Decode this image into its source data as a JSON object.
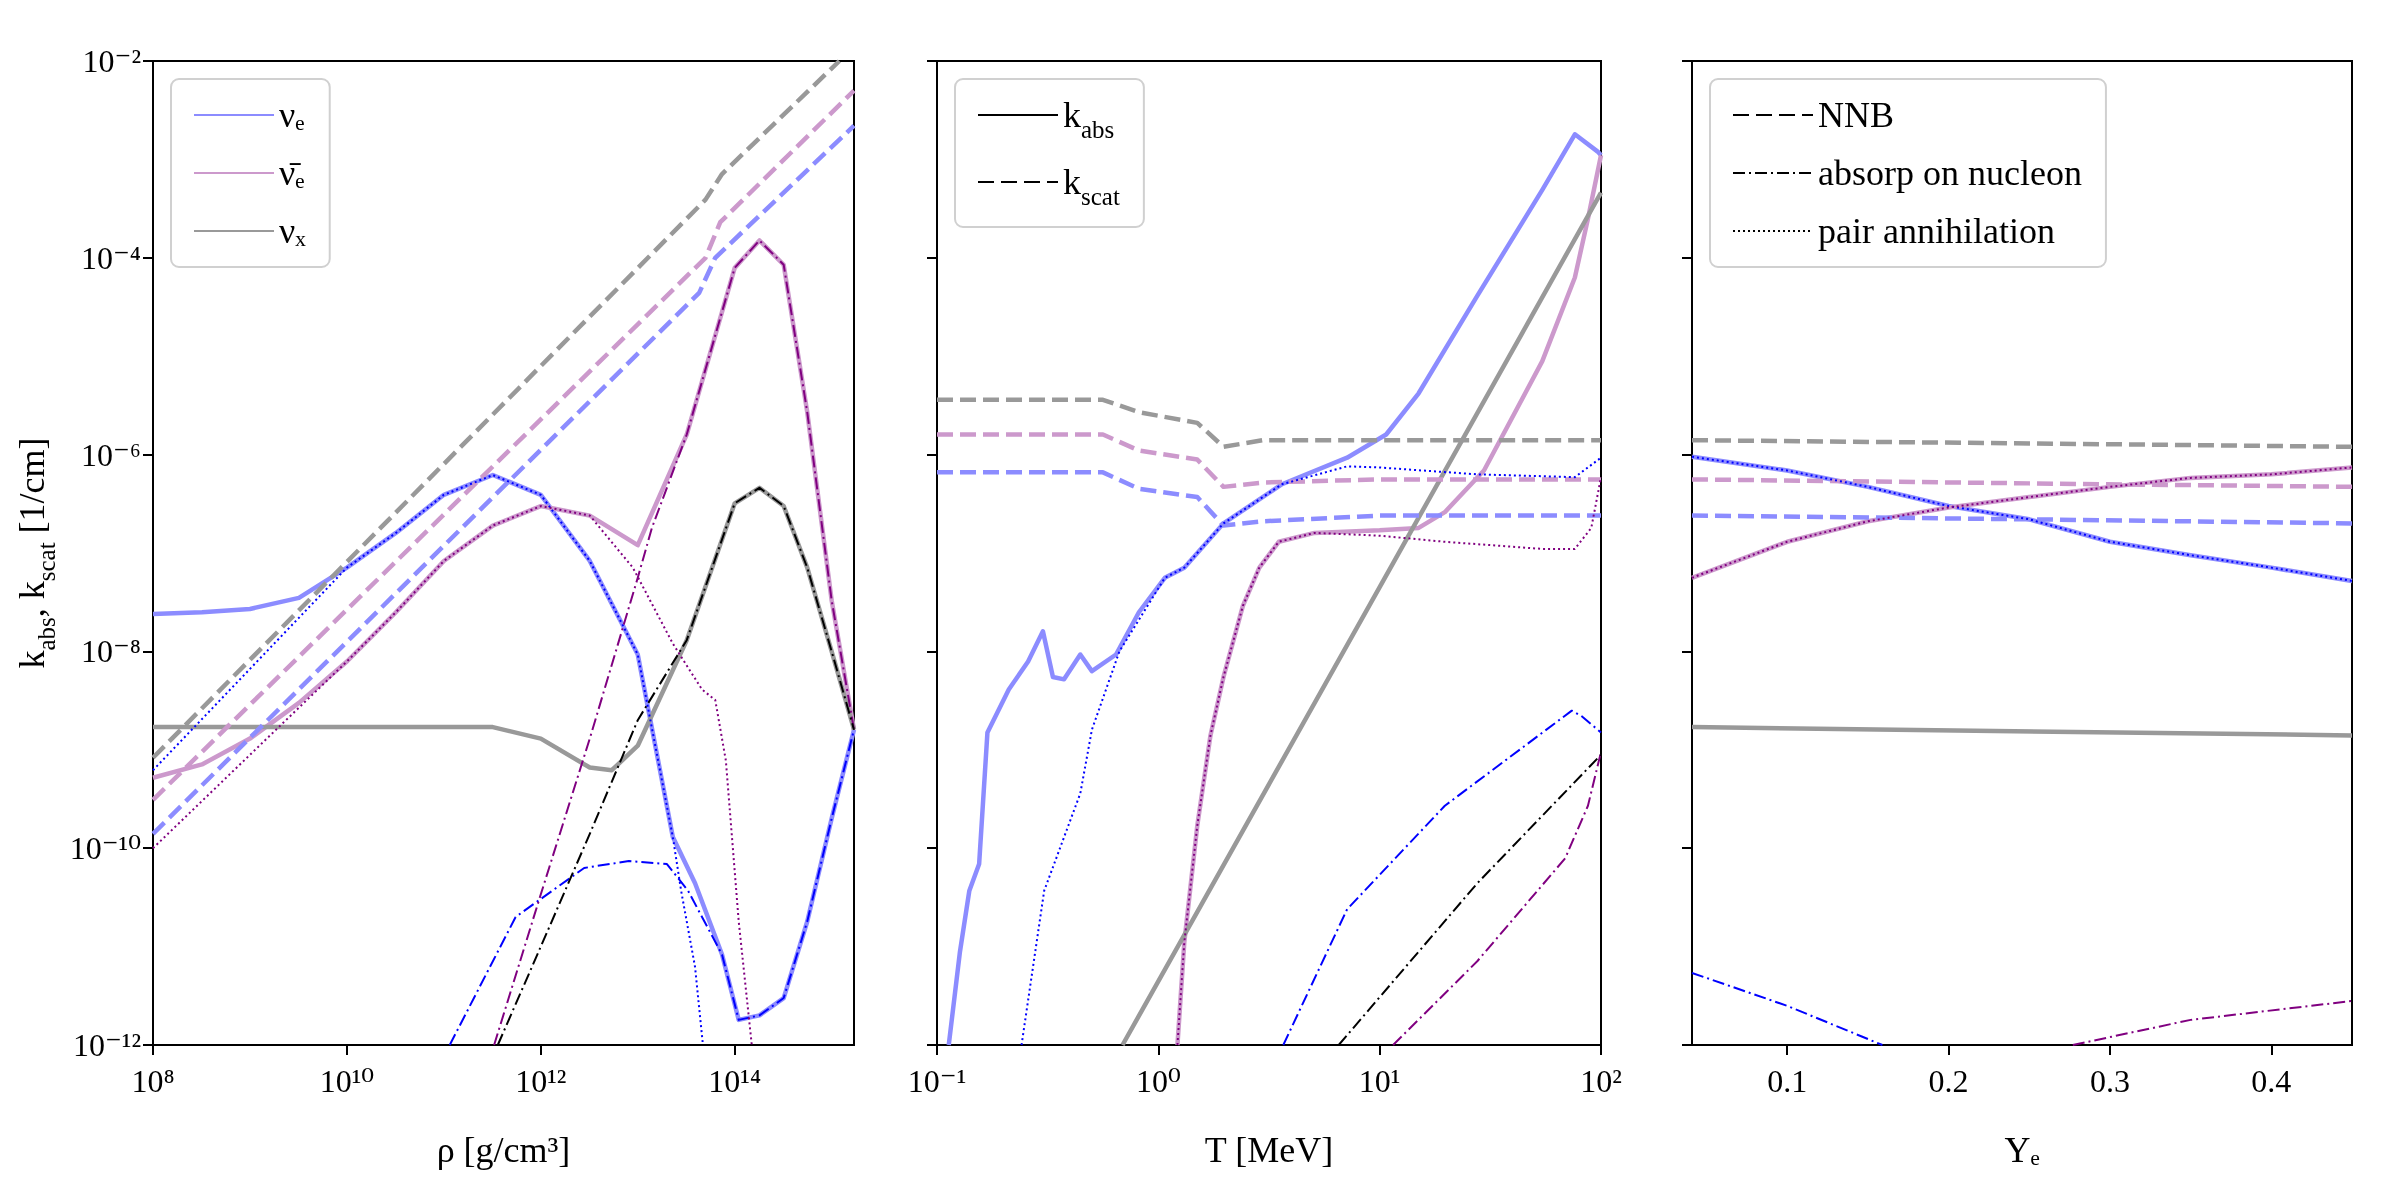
{
  "chart_data": [
    {
      "type": "line",
      "xlabel": "ρ [g/cm³]",
      "ylabel": "k$_{abs}$, k$_{scat}$ [1/cm]",
      "log": "xy",
      "grid": false,
      "legend": "top left",
      "marker": "none",
      "xlim": [
        100000000.0,
        1700000000000000.0
      ],
      "xticks": [
        {
          "value": 100000000.0,
          "label": "10⁸"
        },
        {
          "value": 10000000000.0,
          "label": "10¹⁰"
        },
        {
          "value": 1000000000000.0,
          "label": "10¹²"
        },
        {
          "value": 100000000000000.0,
          "label": "10¹⁴"
        }
      ],
      "ylim": [
        1e-12,
        0.01
      ],
      "yticks": [
        {
          "value": 1e-12,
          "label": "10⁻¹²"
        },
        {
          "value": 1e-10,
          "label": "10⁻¹⁰"
        },
        {
          "value": 1e-08,
          "label": "10⁻⁸"
        },
        {
          "value": 1e-06,
          "label": "10⁻⁶"
        },
        {
          "value": 0.0001,
          "label": "10⁻⁴"
        },
        {
          "value": 0.01,
          "label": "10⁻²"
        }
      ],
      "series": [
        {
          "name": "νₑ",
          "color": "#8c8cff",
          "line_style": "solid",
          "x": [
            100000000.0,
            320000000.0,
            1000000000.0,
            3200000000.0,
            10000000000.0,
            32000000000.0,
            100000000000.0,
            320000000000.0,
            1000000000000.0,
            3200000000000.0,
            10000000000000.0,
            23000000000000.0,
            39000000000000.0,
            74000000000000.0,
            110000000000000.0,
            180000000000000.0,
            320000000000000.0,
            560000000000000.0,
            1000000000000000.0,
            1700000000000000.0
          ],
          "values": [
            2.4e-08,
            2.5e-08,
            2.7e-08,
            3.5e-08,
            7.1e-08,
            1.6e-07,
            3.9e-07,
            6.2e-07,
            3.9e-07,
            8.3e-08,
            9.3e-09,
            1.3e-10,
            4.4e-11,
            8.3e-12,
            1.8e-12,
            2e-12,
            3e-12,
            1.8e-11,
            2e-10,
            1.6e-09
          ]
        },
        {
          "name": "ν̄ₑ",
          "color": "#cc99cc",
          "line_style": "solid",
          "x": [
            100000000.0,
            320000000.0,
            1000000000.0,
            3200000000.0,
            10000000000.0,
            32000000000.0,
            100000000000.0,
            320000000000.0,
            1000000000000.0,
            3200000000000.0,
            10000000000000.0,
            32000000000000.0,
            100000000000000.0,
            180000000000000.0,
            320000000000000.0,
            560000000000000.0,
            1000000000000000.0,
            1700000000000000.0
          ],
          "values": [
            5.2e-10,
            7.1e-10,
            1.3e-09,
            3e-09,
            7.9e-09,
            2.5e-08,
            8.3e-08,
            1.9e-07,
            3e-07,
            2.4e-07,
            1.2e-07,
            1.6e-06,
            7.9e-05,
            0.00015,
            8.5e-05,
            2.7e-06,
            3.3e-08,
            1.6e-09
          ]
        },
        {
          "name": "νₓ",
          "color": "#999999",
          "line_style": "solid",
          "x": [
            100000000.0,
            10000000000.0,
            320000000000.0,
            1000000000000.0,
            3200000000000.0,
            5400000000000.0,
            10000000000000.0,
            32000000000000.0,
            100000000000000.0,
            180000000000000.0,
            320000000000000.0,
            560000000000000.0,
            1000000000000000.0,
            1700000000000000.0
          ],
          "values": [
            1.7e-09,
            1.7e-09,
            1.7e-09,
            1.3e-09,
            6.6e-10,
            6.2e-10,
            1.1e-09,
            1.3e-08,
            3.2e-07,
            4.6e-07,
            3e-07,
            7.1e-08,
            1e-08,
            1.6e-09
          ]
        },
        {
          "color": "#999999",
          "line_style": "dashed",
          "x": [
            100000000.0,
            50000000000000.0,
            74000000000000.0,
            1200000000000000.0
          ],
          "values": [
            8.3e-10,
            0.00039,
            0.00071,
            0.01
          ]
        },
        {
          "color": "#cc99cc",
          "line_style": "dashed",
          "x": [
            100000000.0,
            50000000000000.0,
            71000000000000.0,
            1700000000000000.0
          ],
          "values": [
            3.1e-10,
            0.0001,
            0.00023,
            0.005
          ]
        },
        {
          "color": "#8c8cff",
          "line_style": "dashed",
          "x": [
            100000000.0,
            43000000000000.0,
            63000000000000.0,
            1700000000000000.0
          ],
          "values": [
            1.4e-10,
            4.4e-05,
            0.0001,
            0.0022
          ]
        },
        {
          "color": "#0000ff",
          "line_style": "dotted",
          "x": [
            100000000.0,
            10000000000.0,
            32000000000.0,
            100000000000.0,
            320000000000.0,
            1000000000000.0,
            3200000000000.0,
            10000000000000.0,
            23000000000000.0,
            28000000000000.0,
            39000000000000.0,
            47000000000000.0
          ],
          "values": [
            6.2e-10,
            7.1e-08,
            1.6e-07,
            3.9e-07,
            6.2e-07,
            3.9e-07,
            8.3e-08,
            9.3e-09,
            1.3e-10,
            3.7e-11,
            6.2e-12,
            1e-12
          ]
        },
        {
          "color": "#0000ff",
          "line_style": "dashdot",
          "x": [
            115000000000.0,
            550000000000.0,
            2800000000000.0,
            8100000000000.0,
            20000000000000.0,
            33000000000000.0,
            74000000000000.0,
            110000000000000.0,
            180000000000000.0,
            320000000000000.0,
            560000000000000.0,
            1000000000000000.0,
            1700000000000000.0
          ],
          "values": [
            1e-12,
            2e-11,
            6.3e-11,
            7.4e-11,
            6.9e-11,
            3.7e-11,
            8.3e-12,
            1.8e-12,
            2e-12,
            3e-12,
            1.8e-11,
            2e-10,
            1.6e-09
          ]
        },
        {
          "color": "#800080",
          "line_style": "dotted",
          "x": [
            100000000.0,
            10000000000.0,
            32000000000.0,
            100000000000.0,
            320000000000.0,
            1000000000000.0,
            3200000000000.0,
            8900000000000.0,
            23000000000000.0,
            46000000000000.0,
            63000000000000.0,
            81000000000000.0,
            110000000000000.0,
            150000000000000.0
          ],
          "values": [
            1e-10,
            7.9e-09,
            2.5e-08,
            8.3e-08,
            1.9e-07,
            3e-07,
            2.4e-07,
            7.1e-08,
            1.2e-08,
            4.1e-09,
            3.2e-09,
            7.8e-10,
            1.8e-11,
            1e-12
          ]
        },
        {
          "color": "#800080",
          "line_style": "dashdot",
          "x": [
            330000000000.0,
            1000000000000.0,
            3200000000000.0,
            10000000000000.0,
            14000000000000.0,
            32000000000000.0,
            100000000000000.0,
            180000000000000.0,
            320000000000000.0,
            560000000000000.0,
            1000000000000000.0,
            1700000000000000.0
          ],
          "values": [
            1e-12,
            3.4e-11,
            1.3e-09,
            5.6e-08,
            1.8e-07,
            1.6e-06,
            7.9e-05,
            0.00015,
            8.5e-05,
            2.7e-06,
            3.3e-08,
            1.6e-09
          ]
        },
        {
          "color": "#000000",
          "line_style": "dashdot",
          "x": [
            360000000000.0,
            1000000000000.0,
            3200000000000.0,
            10000000000000.0,
            32000000000000.0,
            100000000000000.0,
            180000000000000.0,
            320000000000000.0,
            560000000000000.0,
            1000000000000000.0,
            1700000000000000.0
          ],
          "values": [
            1e-12,
            1e-11,
            1.4e-10,
            2e-09,
            1.3e-08,
            3.2e-07,
            4.6e-07,
            3e-07,
            7.1e-08,
            1e-08,
            1.6e-09
          ]
        }
      ]
    },
    {
      "type": "line",
      "xlabel": "T [MeV]",
      "log": "xy",
      "grid": false,
      "legend": "top left",
      "marker": "none",
      "tick_labels": "x",
      "xlim": [
        0.1,
        100
      ],
      "xticks": [
        {
          "value": 0.1,
          "label": "10⁻¹"
        },
        {
          "value": 1,
          "label": "10⁰"
        },
        {
          "value": 10,
          "label": "10¹"
        },
        {
          "value": 100,
          "label": "10²"
        }
      ],
      "ylim": [
        1e-12,
        0.01
      ],
      "yticks": [
        1e-12,
        1e-10,
        1e-08,
        1e-06,
        0.0001,
        0.01
      ],
      "series": [
        {
          "color": "#8c8cff",
          "line_style": "solid",
          "x": [
            0.113,
            0.127,
            0.14,
            0.155,
            0.169,
            0.211,
            0.258,
            0.301,
            0.334,
            0.375,
            0.444,
            0.501,
            0.644,
            0.817,
            1.07,
            1.31,
            1.97,
            3.62,
            7.13,
            10.7,
            15,
            27.6,
            54.3,
            76.2,
            96.6,
            100
          ],
          "values": [
            1e-12,
            8.9e-12,
            3.7e-11,
            6.9e-11,
            1.5e-09,
            4.1e-09,
            7.9e-09,
            1.6e-08,
            5.5e-09,
            5.2e-09,
            9.3e-09,
            6.3e-09,
            9.3e-09,
            2.5e-08,
            5.6e-08,
            7.1e-08,
            2e-07,
            5e-07,
            9.3e-07,
            1.6e-06,
            4.2e-06,
            4.1e-05,
            0.00049,
            0.0018,
            0.0012,
            0.0011
          ]
        },
        {
          "color": "#cc99cc",
          "line_style": "solid",
          "x": [
            1.22,
            1.31,
            1.5,
            1.72,
            1.97,
            2.41,
            2.86,
            3.5,
            5.08,
            10,
            15,
            19.7,
            29.6,
            54.3,
            76.2,
            87.3,
            100
          ],
          "values": [
            1e-12,
            1.1e-11,
            1.7e-10,
            1.4e-09,
            5.5e-09,
            2.9e-08,
            7.1e-08,
            1.3e-07,
            1.6e-07,
            1.7e-07,
            1.8e-07,
            2.6e-07,
            6.9e-07,
            8.9e-06,
            6.3e-05,
            0.00025,
            0.0011
          ]
        },
        {
          "color": "#999999",
          "line_style": "solid",
          "x": [
            0.689,
            10,
            100
          ],
          "values": [
            1e-12,
            4.5e-08,
            0.00046
          ]
        },
        {
          "color": "#999999",
          "line_style": "dashed",
          "x": [
            0.1,
            0.562,
            0.817,
            1.5,
            1.97,
            2.96,
            10,
            100
          ],
          "values": [
            3.6e-06,
            3.6e-06,
            2.7e-06,
            2.1e-06,
            1.2e-06,
            1.4e-06,
            1.4e-06,
            1.4e-06
          ]
        },
        {
          "color": "#cc99cc",
          "line_style": "dashed",
          "x": [
            0.1,
            0.562,
            0.817,
            1.5,
            1.97,
            2.96,
            10,
            100
          ],
          "values": [
            1.6e-06,
            1.6e-06,
            1.1e-06,
            8.9e-07,
            4.7e-07,
            5.2e-07,
            5.6e-07,
            5.6e-07
          ]
        },
        {
          "color": "#8c8cff",
          "line_style": "dashed",
          "x": [
            0.1,
            0.562,
            0.817,
            1.5,
            1.97,
            2.96,
            10,
            100
          ],
          "values": [
            6.6e-07,
            6.6e-07,
            4.5e-07,
            3.7e-07,
            1.9e-07,
            2.1e-07,
            2.4e-07,
            2.4e-07
          ]
        },
        {
          "color": "#0000ff",
          "line_style": "dotted",
          "x": [
            0.241,
            0.305,
            0.444,
            0.501,
            0.667,
            1.07,
            1.31,
            1.97,
            3.62,
            7.13,
            10,
            27.6,
            76.2,
            100
          ],
          "values": [
            1e-12,
            3.7e-11,
            3.6e-10,
            1.6e-09,
            1e-08,
            5.6e-08,
            7.1e-08,
            2e-07,
            5e-07,
            7.6e-07,
            7.4e-07,
            6.3e-07,
            5.9e-07,
            9.3e-07
          ]
        },
        {
          "color": "#0000ff",
          "line_style": "dashdot",
          "x": [
            3.67,
            7.13,
            19.7,
            73.8,
            81.6,
            100
          ],
          "values": [
            1e-12,
            2.4e-11,
            2.7e-10,
            2.5e-09,
            2.2e-09,
            1.5e-09
          ]
        },
        {
          "color": "#800080",
          "line_style": "dotted",
          "x": [
            1.22,
            1.31,
            1.5,
            1.72,
            1.97,
            2.41,
            2.86,
            3.5,
            5.08,
            10,
            19.7,
            54.3,
            76.2,
            90.4,
            100
          ],
          "values": [
            1e-12,
            1.1e-11,
            1.7e-10,
            1.4e-09,
            5.5e-09,
            2.9e-08,
            7.1e-08,
            1.3e-07,
            1.6e-07,
            1.5e-07,
            1.3e-07,
            1.1e-07,
            1.1e-07,
            1.8e-07,
            5.9e-07
          ]
        },
        {
          "color": "#800080",
          "line_style": "dashdot",
          "x": [
            11.5,
            27.6,
            68.9,
            87.3,
            100
          ],
          "values": [
            1e-12,
            7.1e-12,
            7.9e-11,
            2.7e-10,
            9.5e-10
          ]
        },
        {
          "color": "#000000",
          "line_style": "dashdot",
          "x": [
            6.53,
            27.6,
            100
          ],
          "values": [
            1e-12,
            4.4e-11,
            8.9e-10
          ]
        },
        {
          "name": "k$_{abs}$",
          "color": "#000000",
          "line_style": "solid"
        },
        {
          "name": "k$_{scat}$",
          "color": "#000000",
          "line_style": "dashed"
        }
      ]
    },
    {
      "type": "line",
      "xlabel": "Yₑ",
      "log": "y",
      "grid": false,
      "legend": "top left",
      "marker": "none",
      "tick_labels": "x",
      "xlim": [
        0.041,
        0.45
      ],
      "xticks": [
        0.1,
        0.2,
        0.3,
        0.4
      ],
      "ylim": [
        1e-12,
        0.01
      ],
      "yticks": [
        1e-12,
        1e-10,
        1e-08,
        1e-06,
        0.0001,
        0.01
      ],
      "series": [
        {
          "color": "#8c8cff",
          "line_style": "solid",
          "x": [
            0.041,
            0.1,
            0.15,
            0.2,
            0.25,
            0.3,
            0.35,
            0.4,
            0.45
          ],
          "values": [
            9.5e-07,
            6.9e-07,
            4.7e-07,
            3e-07,
            2.2e-07,
            1.3e-07,
            9.5e-08,
            7.1e-08,
            5.2e-08
          ]
        },
        {
          "color": "#cc99cc",
          "line_style": "solid",
          "x": [
            0.041,
            0.1,
            0.15,
            0.2,
            0.25,
            0.3,
            0.35,
            0.4,
            0.45
          ],
          "values": [
            5.6e-08,
            1.3e-07,
            2.1e-07,
            2.9e-07,
            3.7e-07,
            4.7e-07,
            5.8e-07,
            6.3e-07,
            7.4e-07
          ]
        },
        {
          "color": "#999999",
          "line_style": "solid",
          "x": [
            0.041,
            0.45
          ],
          "values": [
            1.7e-09,
            1.4e-09
          ]
        },
        {
          "color": "#999999",
          "line_style": "dashed",
          "x": [
            0.041,
            0.25,
            0.45
          ],
          "values": [
            1.4e-06,
            1.3e-06,
            1.2e-06
          ]
        },
        {
          "color": "#cc99cc",
          "line_style": "dashed",
          "x": [
            0.041,
            0.25,
            0.45
          ],
          "values": [
            5.6e-07,
            5.1e-07,
            4.7e-07
          ]
        },
        {
          "color": "#8c8cff",
          "line_style": "dashed",
          "x": [
            0.041,
            0.25,
            0.45
          ],
          "values": [
            2.4e-07,
            2.2e-07,
            2e-07
          ]
        },
        {
          "color": "#0000ff",
          "line_style": "dotted",
          "x": [
            0.041,
            0.1,
            0.15,
            0.2,
            0.25,
            0.3,
            0.35,
            0.4,
            0.45
          ],
          "values": [
            9.5e-07,
            6.9e-07,
            4.7e-07,
            3e-07,
            2.2e-07,
            1.3e-07,
            9.5e-08,
            7.1e-08,
            5.2e-08
          ]
        },
        {
          "color": "#800080",
          "line_style": "dotted",
          "x": [
            0.041,
            0.1,
            0.15,
            0.2,
            0.25,
            0.3,
            0.35,
            0.4,
            0.45
          ],
          "values": [
            5.6e-08,
            1.3e-07,
            2.1e-07,
            2.9e-07,
            3.7e-07,
            4.7e-07,
            5.8e-07,
            6.3e-07,
            7.4e-07
          ]
        },
        {
          "color": "#0000ff",
          "line_style": "dashdot",
          "x": [
            0.041,
            0.1,
            0.159
          ],
          "values": [
            5.4e-12,
            2.5e-12,
            1e-12
          ]
        },
        {
          "color": "#800080",
          "line_style": "dashdot",
          "x": [
            0.277,
            0.35,
            0.45
          ],
          "values": [
            1e-12,
            1.8e-12,
            2.8e-12
          ]
        },
        {
          "name": "NNB",
          "color": "#000000",
          "line_style": "dashed"
        },
        {
          "name": "absorp on nucleon",
          "color": "#000000",
          "line_style": "dashdot"
        },
        {
          "name": "pair annihilation",
          "color": "#000000",
          "line_style": "dotted"
        }
      ]
    }
  ]
}
